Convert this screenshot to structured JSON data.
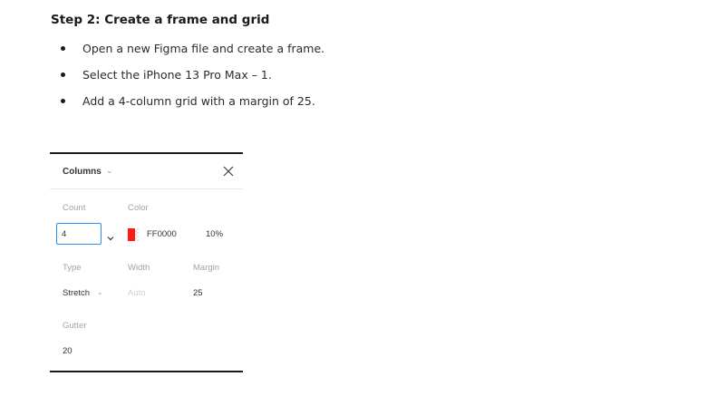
{
  "heading": "Step 2: Create a frame and grid",
  "steps": [
    "Open a new Figma file and create a frame.",
    "Select the iPhone 13 Pro Max – 1.",
    "Add a 4-column grid with a margin of 25."
  ],
  "panel": {
    "title": "Columns",
    "count": {
      "label": "Count",
      "value": "4"
    },
    "color": {
      "label": "Color",
      "hex": "FF0000",
      "opacity": "10%",
      "swatch": "#ff1a1a"
    },
    "type": {
      "label": "Type",
      "value": "Stretch"
    },
    "width": {
      "label": "Width",
      "value": "Auto"
    },
    "margin": {
      "label": "Margin",
      "value": "25"
    },
    "gutter": {
      "label": "Gutter",
      "value": "20"
    },
    "icons": {
      "close": "close-icon",
      "dropdown": "chevron-down-icon"
    }
  }
}
